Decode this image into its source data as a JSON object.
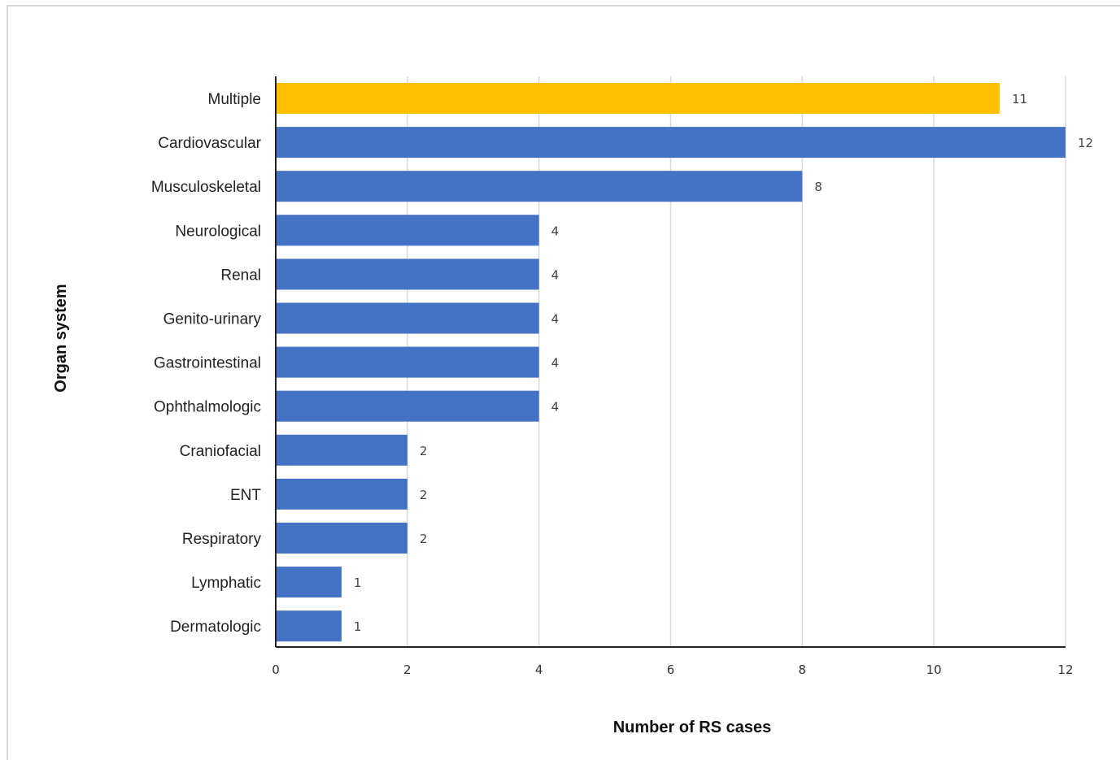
{
  "chart_data": {
    "type": "bar",
    "orientation": "horizontal",
    "categories": [
      "Multiple",
      "Cardiovascular",
      "Musculoskeletal",
      "Neurological",
      "Renal",
      "Genito-urinary",
      "Gastrointestinal",
      "Ophthalmologic",
      "Craniofacial",
      "ENT",
      "Respiratory",
      "Lymphatic",
      "Dermatologic"
    ],
    "values": [
      11,
      12,
      8,
      4,
      4,
      4,
      4,
      4,
      2,
      2,
      2,
      1,
      1
    ],
    "bar_colors": [
      "#FFC000",
      "#4472C4",
      "#4472C4",
      "#4472C4",
      "#4472C4",
      "#4472C4",
      "#4472C4",
      "#4472C4",
      "#4472C4",
      "#4472C4",
      "#4472C4",
      "#4472C4",
      "#4472C4"
    ],
    "xlabel": "Number of RS cases",
    "ylabel": "Organ system",
    "xlim": [
      0,
      12
    ],
    "xticks": [
      0,
      2,
      4,
      6,
      8,
      10,
      12
    ],
    "grid": true,
    "data_labels": true
  }
}
